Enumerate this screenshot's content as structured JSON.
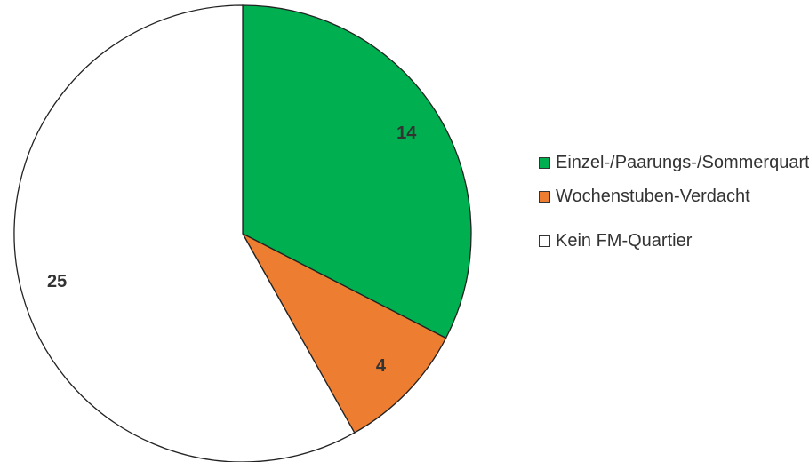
{
  "chart_data": {
    "type": "pie",
    "series": [
      {
        "name": "Einzel-/Paarungs-/Sommerquartier",
        "color": "#00b050",
        "values": [
          14
        ]
      },
      {
        "name": "Wochenstuben-Verdacht",
        "color": "#ed7d31",
        "values": [
          4
        ]
      },
      {
        "name": "Kein FM-Quartier",
        "color": "#ffffff",
        "values": [
          25
        ]
      }
    ],
    "legend": "right"
  }
}
